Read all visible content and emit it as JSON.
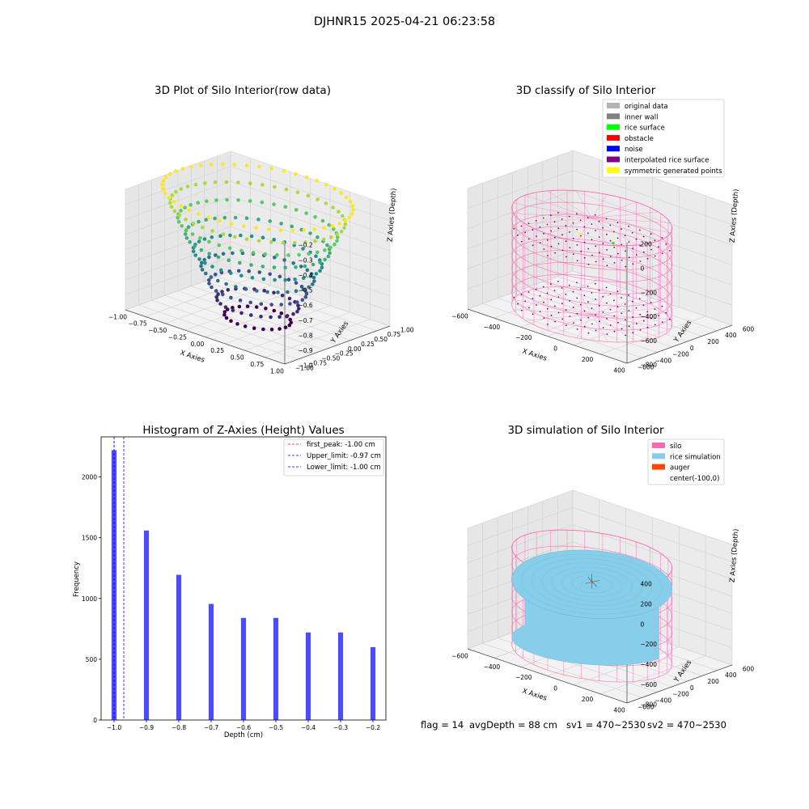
{
  "suptitle": "DJHNR15 2025-04-21 06:23:58",
  "chart_data": [
    {
      "type": "scatter",
      "title": "3D Plot of Silo Interior(row data)",
      "xlabel": "X Axies",
      "ylabel": "Y Axies",
      "zlabel": "Z Axies (Depth)",
      "x_ticks": [
        "−1.00",
        "−0.75",
        "−0.50",
        "−0.25",
        "0.00",
        "0.25",
        "0.50",
        "0.75",
        "1.00"
      ],
      "y_ticks": [
        "−1.00",
        "−0.75",
        "−0.50",
        "−0.25",
        "0.00",
        "0.25",
        "0.50",
        "0.75",
        "1.00"
      ],
      "z_ticks": [
        "−1.0",
        "−0.9",
        "−0.8",
        "−0.7",
        "−0.6",
        "−0.5",
        "−0.4",
        "−0.3",
        "−0.2"
      ],
      "z_levels": [
        -1.0,
        -0.9,
        -0.8,
        -0.7,
        -0.6,
        -0.5,
        -0.4,
        -0.3,
        -0.2
      ],
      "colormap": "viridis",
      "grid": true
    },
    {
      "type": "scatter",
      "title": "3D classify of Silo Interior",
      "xlabel": "X Axies",
      "ylabel": "Y Axies",
      "zlabel": "Z Axies (Depth)",
      "x_ticks": [
        "−600",
        "−400",
        "−200",
        "0",
        "200",
        "400"
      ],
      "y_ticks": [
        "−600",
        "−400",
        "−200",
        "0",
        "200",
        "400",
        "600"
      ],
      "z_ticks": [
        "−800",
        "−600",
        "−400",
        "−200",
        "0",
        "200"
      ],
      "legend_location": "top-right",
      "legend": [
        {
          "label": "original data",
          "color": "#b3b3b3"
        },
        {
          "label": "inner wall",
          "color": "#808080"
        },
        {
          "label": "rice surface",
          "color": "#00ff00"
        },
        {
          "label": "obstacle",
          "color": "#ff0000"
        },
        {
          "label": "noise",
          "color": "#0000ff"
        },
        {
          "label": "interpolated rice surface",
          "color": "#800080"
        },
        {
          "label": "symmetric generated points",
          "color": "#ffff00"
        }
      ],
      "wireframe_color": "#ff69b4",
      "grid": true
    },
    {
      "type": "bar",
      "title": "Histogram of Z-Axies (Height) Values",
      "xlabel": "Depth (cm)",
      "ylabel": "Frequency",
      "categories": [
        -1.0,
        -0.9,
        -0.8,
        -0.7,
        -0.6,
        -0.5,
        -0.4,
        -0.3,
        -0.2
      ],
      "values": [
        2220,
        1560,
        1195,
        955,
        840,
        840,
        720,
        720,
        600
      ],
      "bar_color": "#0000ff",
      "x_ticks": [
        "−1.0",
        "−0.9",
        "−0.8",
        "−0.7",
        "−0.6",
        "−0.5",
        "−0.4",
        "−0.3",
        "−0.2"
      ],
      "y_ticks": [
        "0",
        "500",
        "1000",
        "1500",
        "2000"
      ],
      "xlim": [
        -1.04,
        -0.16
      ],
      "ylim": [
        0,
        2330
      ],
      "legend_location": "top-right",
      "vlines": [
        {
          "label": "first_peak: -1.00 cm",
          "x": -1.0,
          "color": "#ff0000"
        },
        {
          "label": "Upper_limit: -0.97 cm",
          "x": -0.97,
          "color": "#0000ff"
        },
        {
          "label": "Lower_limit: -1.00 cm",
          "x": -1.0,
          "color": "#0000ff"
        }
      ]
    },
    {
      "type": "scatter",
      "title": "3D simulation of Silo Interior",
      "xlabel": "X Axies",
      "ylabel": "Y Axies",
      "zlabel": "Z Axies (Depth)",
      "x_ticks": [
        "−600",
        "−400",
        "−200",
        "0",
        "200",
        "400"
      ],
      "y_ticks": [
        "−600",
        "−400",
        "−200",
        "0",
        "200",
        "400",
        "600"
      ],
      "z_ticks": [
        "−800",
        "−600",
        "−400",
        "−200",
        "0",
        "200",
        "400"
      ],
      "legend_location": "top-right",
      "legend": [
        {
          "label": "silo",
          "color": "#ff69b4"
        },
        {
          "label": "rice simulation",
          "color": "#87ceeb"
        },
        {
          "label": "auger",
          "color": "#ff4500"
        },
        {
          "label": "center(-100,0)",
          "color": ""
        }
      ],
      "grid": true
    }
  ],
  "status_line": {
    "flag": "flag = 14",
    "avg_depth": "avgDepth = 88 cm",
    "sv1": "sv1 = 470~2530",
    "sv2": "sv2 = 470~2530"
  }
}
